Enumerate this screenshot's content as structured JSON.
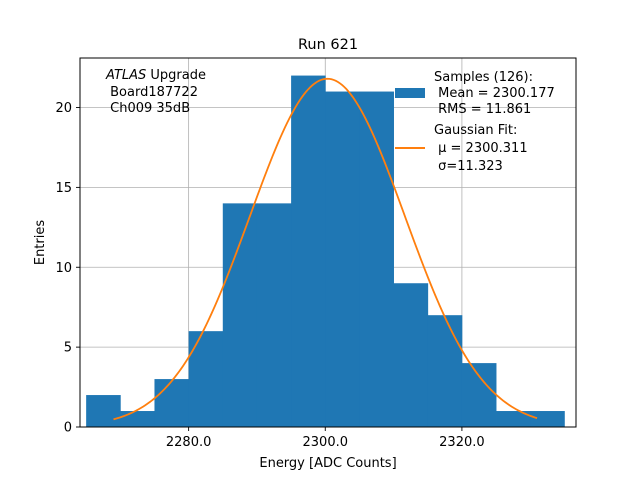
{
  "chart_data": {
    "type": "bar",
    "title": "Run 621",
    "xlabel": "Energy [ADC Counts]",
    "ylabel": "Entries",
    "xlim": [
      2264.1,
      2336.7
    ],
    "ylim": [
      0,
      23.1
    ],
    "grid": true,
    "x_ticks": [
      2280.0,
      2300.0,
      2320.0
    ],
    "x_tick_labels": [
      "2280.0",
      "2300.0",
      "2320.0"
    ],
    "y_ticks": [
      0,
      5,
      10,
      15,
      20
    ],
    "y_tick_labels": [
      "0",
      "5",
      "10",
      "15",
      "20"
    ],
    "histogram": {
      "color": "#1f77b4",
      "bin_edges": [
        2265.0,
        2270.0,
        2275.0,
        2280.0,
        2285.0,
        2290.0,
        2295.0,
        2300.0,
        2305.0,
        2310.0,
        2315.0,
        2320.0,
        2325.0,
        2330.0,
        2335.0
      ],
      "counts": [
        2,
        1,
        3,
        6,
        14,
        14,
        22,
        21,
        21,
        9,
        7,
        4,
        1,
        1
      ]
    },
    "fit": {
      "color": "#ff7f0e",
      "type": "gaussian",
      "mu": 2300.311,
      "sigma": 11.323,
      "amplitude": 21.8,
      "x_range": [
        2269.0,
        2331.0
      ]
    },
    "legend": {
      "placement": "top-right",
      "samples_title": "Samples (126):",
      "samples_mean": " Mean = 2300.177",
      "samples_rms": " RMS = 11.861",
      "fit_title": "Gaussian Fit:",
      "fit_mu": " μ = 2300.311",
      "fit_sigma": " σ=11.323"
    },
    "annotation": {
      "placement": "top-left",
      "line1_italic": "ATLAS",
      "line1_rest": " Upgrade",
      "line2": " Board187722",
      "line3": " Ch009 35dB"
    }
  }
}
